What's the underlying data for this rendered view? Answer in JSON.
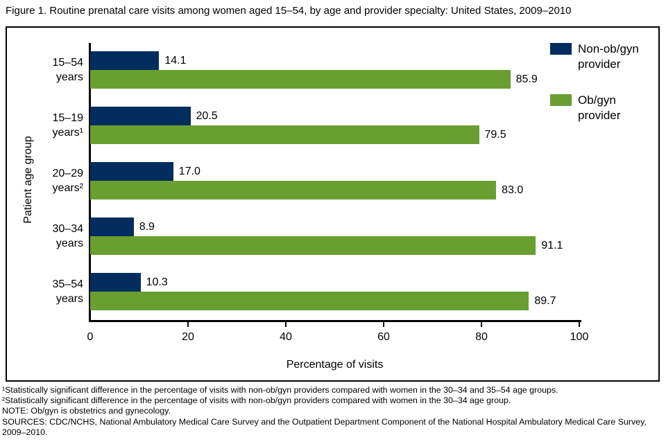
{
  "title": "Figure 1. Routine prenatal care visits among women aged 15–54, by age and provider specialty: United States, 2009–2010",
  "colors": {
    "non_obgyn": "#022d5e",
    "obgyn": "#699f31",
    "axis": "#000000"
  },
  "chart_data": {
    "type": "bar",
    "orientation": "horizontal",
    "categories": [
      "15–54\nyears",
      "15–19\nyears¹",
      "20–29\nyears²",
      "30–34\nyears",
      "35–54\nyears"
    ],
    "series": [
      {
        "name": "Non-ob/gyn provider",
        "color": "#022d5e",
        "values": [
          14.1,
          20.5,
          17.0,
          8.9,
          10.3
        ],
        "labels": [
          "14.1",
          "20.5",
          "17.0",
          "8.9",
          "10.3"
        ]
      },
      {
        "name": "Ob/gyn provider",
        "color": "#699f31",
        "values": [
          85.9,
          79.5,
          83.0,
          91.1,
          89.7
        ],
        "labels": [
          "85.9",
          "79.5",
          "83.0",
          "91.1",
          "89.7"
        ]
      }
    ],
    "xlabel": "Percentage of visits",
    "ylabel": "Patient age group",
    "xlim": [
      0,
      100
    ],
    "xticks": [
      0,
      20,
      40,
      60,
      80,
      100
    ],
    "grid": false,
    "legend_position": "top-right"
  },
  "legend": [
    {
      "label": "Non-ob/gyn\nprovider",
      "color": "#022d5e",
      "swatch": "non-obgyn-swatch"
    },
    {
      "label": "Ob/gyn\nprovider",
      "color": "#699f31",
      "swatch": "obgyn-swatch"
    }
  ],
  "footnotes": [
    "¹Statistically significant difference in the percentage of visits with non-ob/gyn providers compared with women in the 30–34 and 35–54 age groups.",
    "²Statistically significant difference in the percentage of visits with non-ob/gyn providers compared with women in the 30–34 age group.",
    "NOTE: Ob/gyn is obstetrics and gynecology.",
    "SOURCES: CDC/NCHS, National Ambulatory Medical Care Survey and the Outpatient Department Component of the National Hospital Ambulatory Medical Care Survey, 2009–2010."
  ]
}
